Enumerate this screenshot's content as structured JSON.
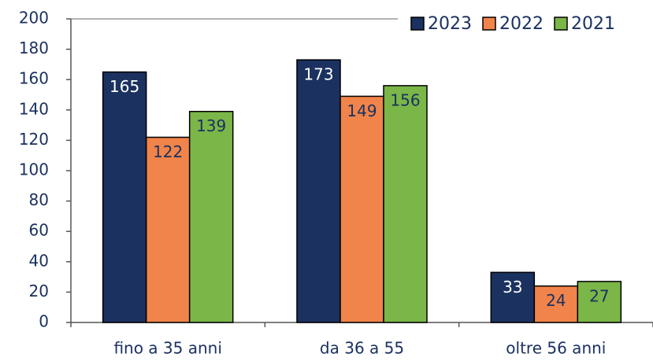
{
  "chart_data": {
    "type": "bar",
    "categories": [
      "fino a 35 anni",
      "da 36 a 55",
      "oltre 56 anni"
    ],
    "series": [
      {
        "name": "2023",
        "color": "#1b3160",
        "label_color": "#ffffff",
        "values": [
          165,
          173,
          33
        ]
      },
      {
        "name": "2022",
        "color": "#f0844a",
        "label_color": "#1b3160",
        "values": [
          122,
          149,
          24
        ]
      },
      {
        "name": "2021",
        "color": "#7ab648",
        "label_color": "#1b3160",
        "values": [
          139,
          156,
          27
        ]
      }
    ],
    "ylim": [
      0,
      200
    ],
    "yticks": [
      0,
      20,
      40,
      60,
      80,
      100,
      120,
      140,
      160,
      180,
      200
    ],
    "grid": false,
    "legend": "top-right"
  }
}
